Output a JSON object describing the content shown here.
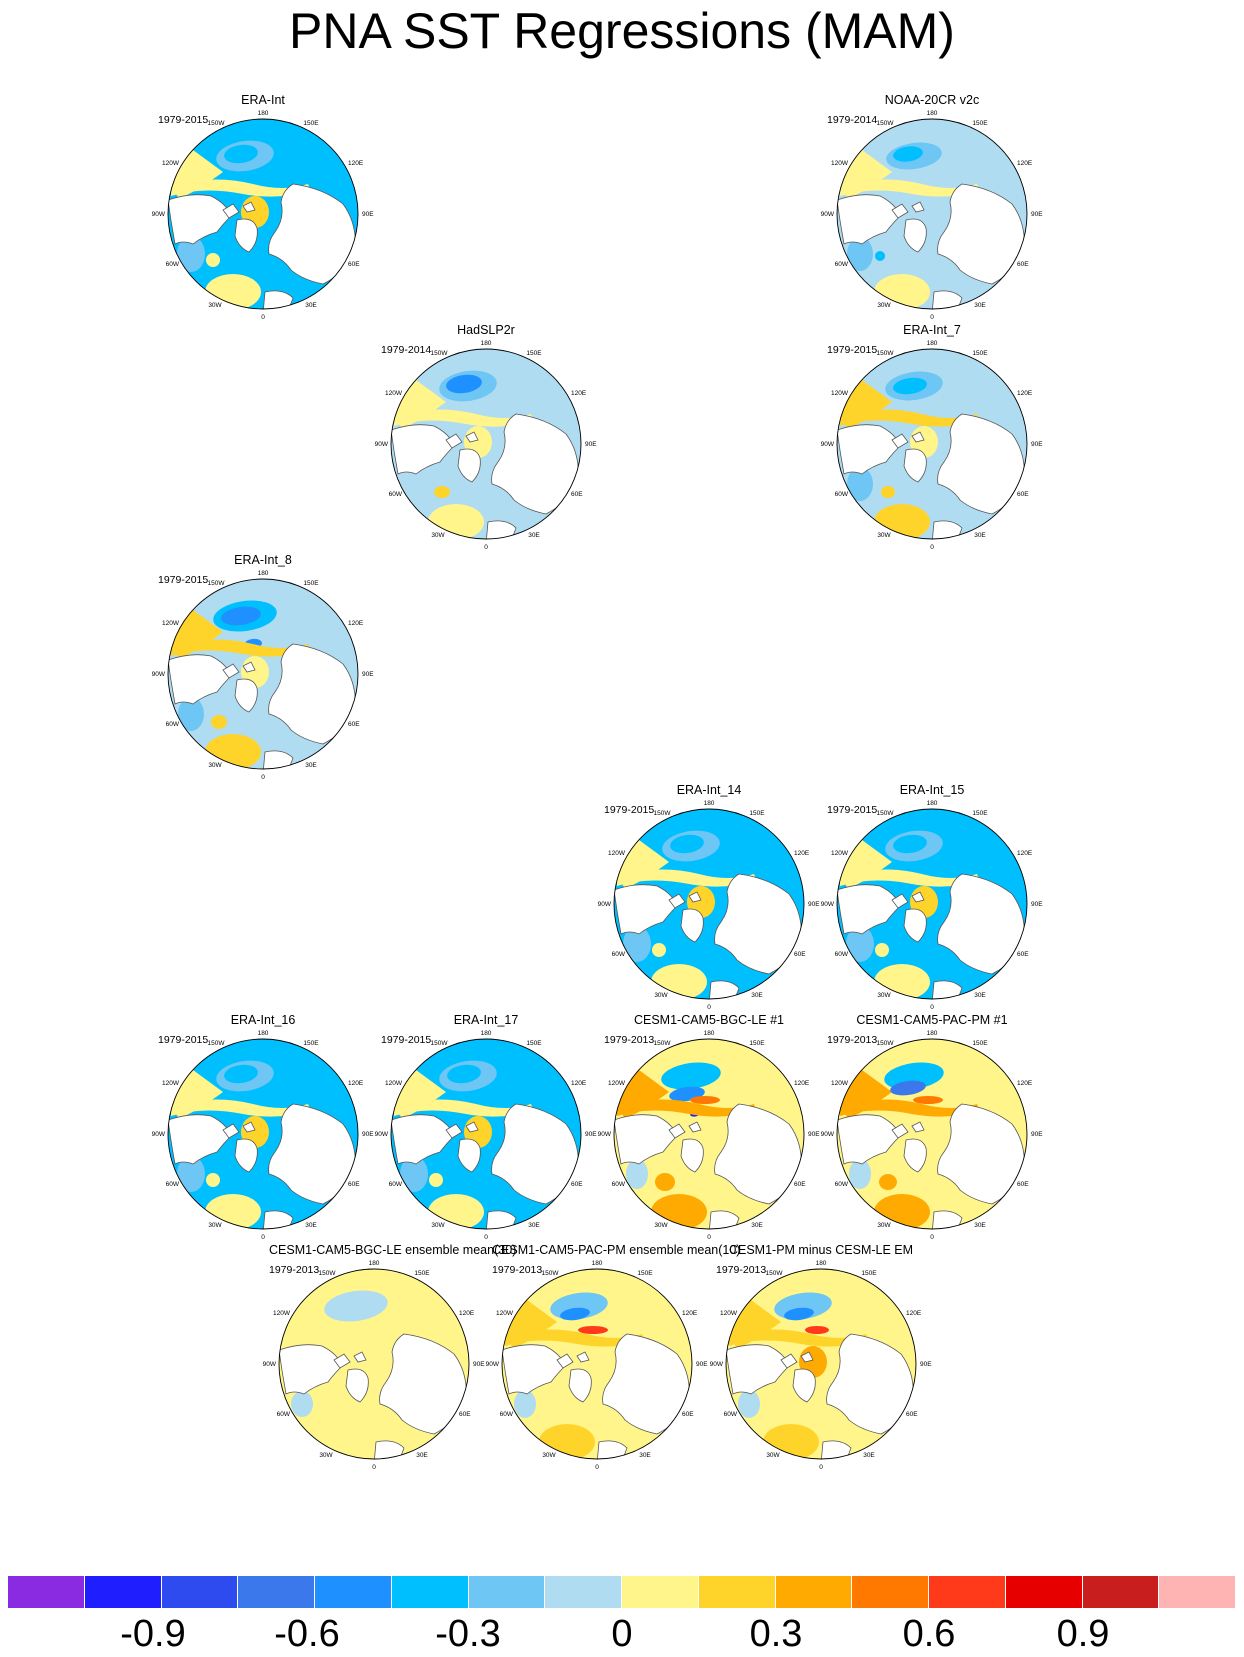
{
  "title": "PNA SST Regressions (MAM)",
  "map_labels": {
    "top": "180",
    "upper_left": "150W",
    "upper_right": "150E",
    "left_upper": "120W",
    "right_upper": "120E",
    "left": "90W",
    "right": "90E",
    "left_lower": "60W",
    "right_lower": "60E",
    "lower_left": "30W",
    "lower_right": "30E",
    "bottom": "0"
  },
  "panels": [
    {
      "title": "ERA-Int",
      "years": "1979-2015",
      "style": "era"
    },
    {
      "title": "NOAA-20CR v2c",
      "years": "1979-2014",
      "style": "noaa"
    },
    {
      "title": "HadSLP2r",
      "years": "1979-2014",
      "style": "had"
    },
    {
      "title": "ERA-Int_7",
      "years": "1979-2015",
      "style": "era7"
    },
    {
      "title": "ERA-Int_8",
      "years": "1979-2015",
      "style": "era8"
    },
    {
      "title": "ERA-Int_14",
      "years": "1979-2015",
      "style": "era"
    },
    {
      "title": "ERA-Int_15",
      "years": "1979-2015",
      "style": "era"
    },
    {
      "title": "ERA-Int_16",
      "years": "1979-2015",
      "style": "era"
    },
    {
      "title": "ERA-Int_17",
      "years": "1979-2015",
      "style": "era"
    },
    {
      "title": "CESM1-CAM5-BGC-LE #1",
      "years": "1979-2013",
      "style": "bgc"
    },
    {
      "title": "CESM1-CAM5-PAC-PM #1",
      "years": "1979-2013",
      "style": "pac"
    },
    {
      "title": "CESM1-CAM5-BGC-LE ensemble mean(30)",
      "years": "1979-2013",
      "style": "lemean"
    },
    {
      "title": "CESM1-CAM5-PAC-PM ensemble mean(10)",
      "years": "1979-2013",
      "style": "pmmean"
    },
    {
      "title": "CESM1-PM minus CESM-LE EM",
      "years": "1979-2013",
      "style": "diff"
    }
  ],
  "colorbar": {
    "colors": [
      "#8a2be2",
      "#1e1eff",
      "#2d4bef",
      "#3a78ec",
      "#1e90ff",
      "#00bfff",
      "#6ec6f5",
      "#b0dcf2",
      "#fff58a",
      "#ffd42a",
      "#ffaa00",
      "#ff7800",
      "#ff3a1a",
      "#e60000",
      "#c81e1e",
      "#ffb4b4"
    ],
    "tick_labels": [
      "-0.9",
      "-0.6",
      "-0.3",
      "0",
      "0.3",
      "0.6",
      "0.9"
    ]
  }
}
